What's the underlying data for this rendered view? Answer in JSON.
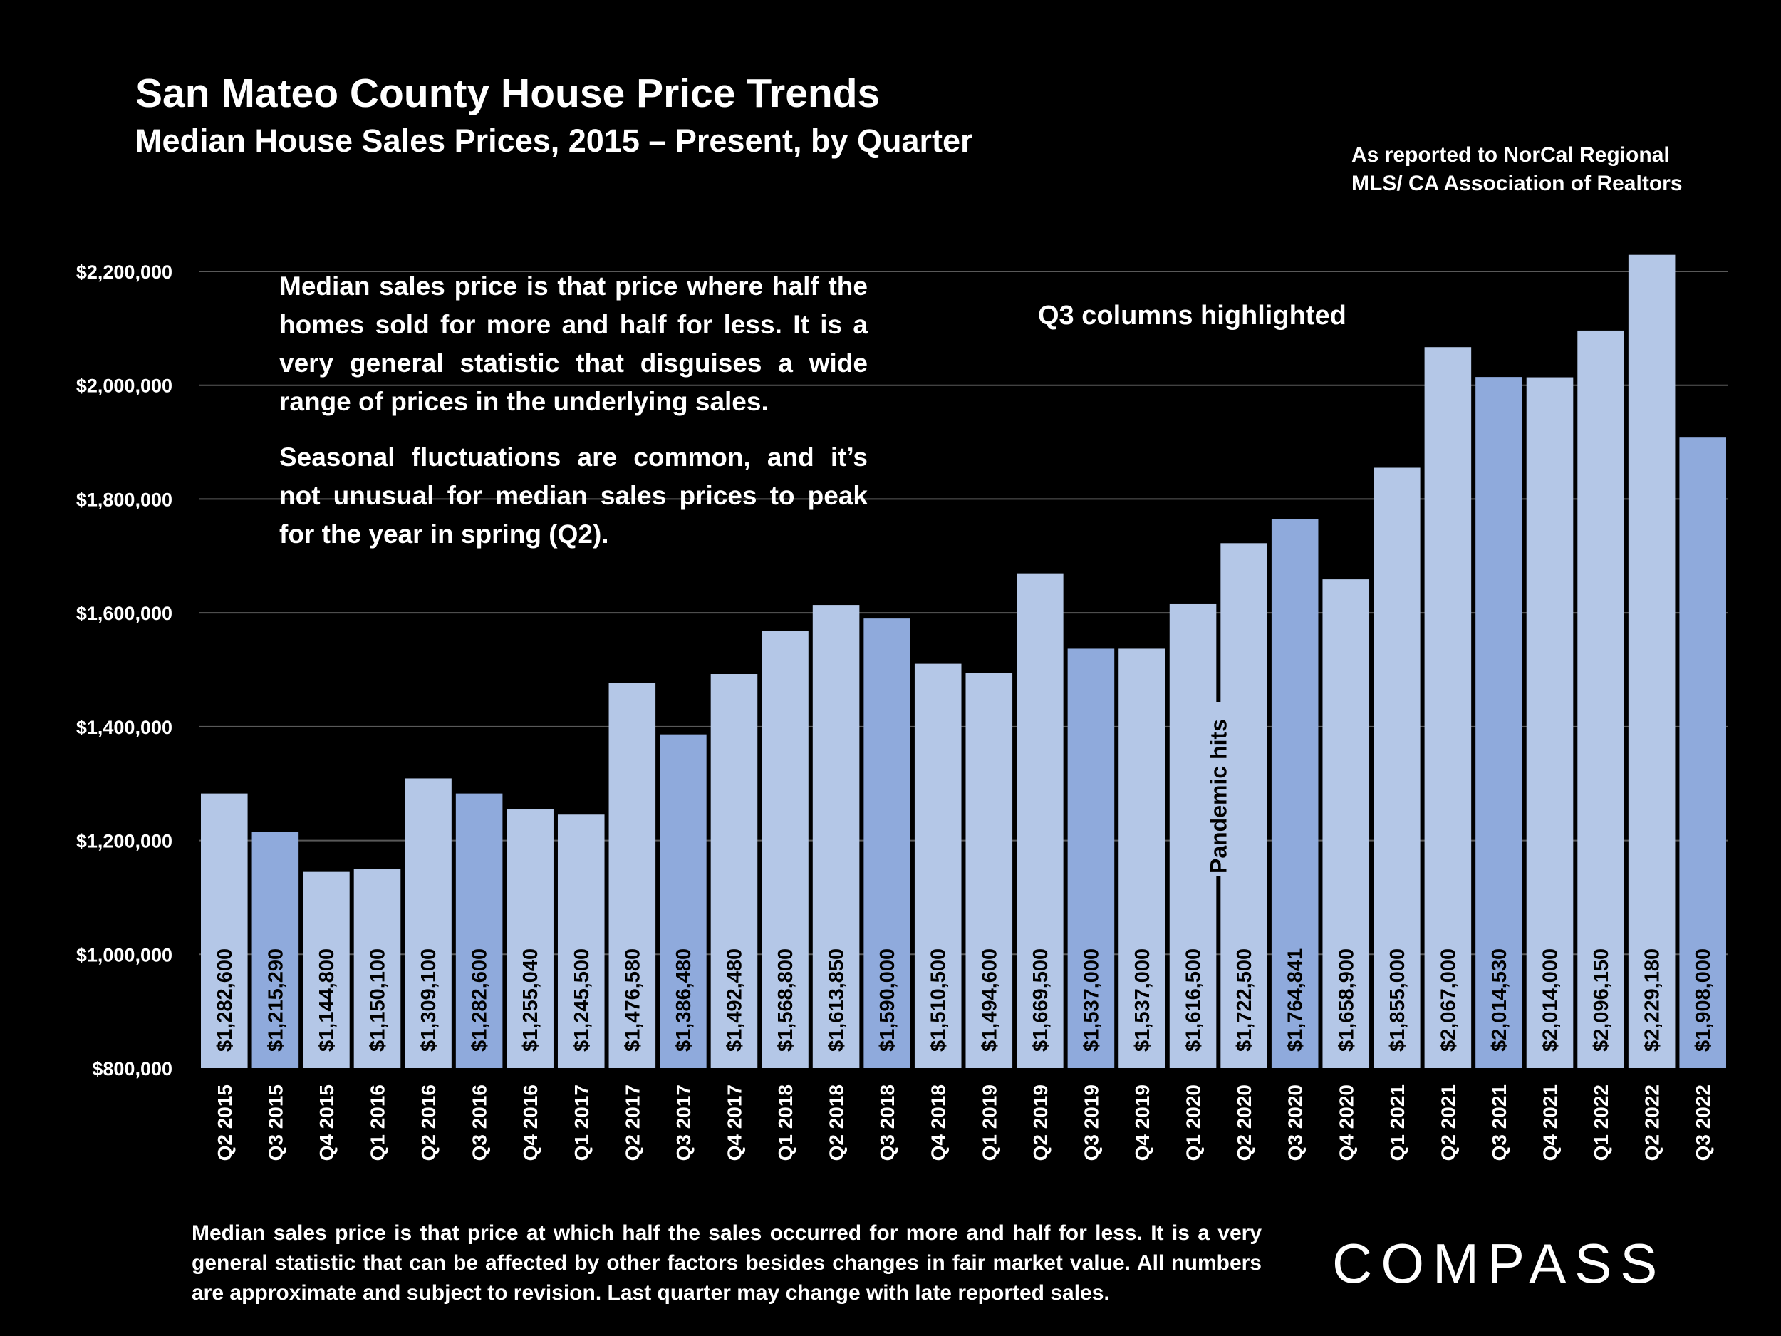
{
  "chart_data": {
    "type": "bar",
    "title": "San Mateo County House Price Trends",
    "subtitle": "Median House Sales Prices, 2015 – Present, by Quarter",
    "source": [
      "As reported to NorCal Regional",
      "MLS/ CA Association of Realtors"
    ],
    "categories": [
      "Q2 2015",
      "Q3 2015",
      "Q4 2015",
      "Q1 2016",
      "Q2 2016",
      "Q3 2016",
      "Q4 2016",
      "Q1 2017",
      "Q2 2017",
      "Q3 2017",
      "Q4 2017",
      "Q1 2018",
      "Q2 2018",
      "Q3 2018",
      "Q4 2018",
      "Q1 2019",
      "Q2 2019",
      "Q3 2019",
      "Q4 2019",
      "Q1 2020",
      "Q2 2020",
      "Q3 2020",
      "Q4 2020",
      "Q1 2021",
      "Q2 2021",
      "Q3 2021",
      "Q4 2021",
      "Q1 2022",
      "Q2 2022",
      "Q3 2022"
    ],
    "values": [
      1282600,
      1215290,
      1144800,
      1150100,
      1309100,
      1282600,
      1255040,
      1245500,
      1476580,
      1386480,
      1492480,
      1568800,
      1613850,
      1590000,
      1510500,
      1494600,
      1669500,
      1537000,
      1537000,
      1616500,
      1722500,
      1764841,
      1658900,
      1855000,
      2067000,
      2014530,
      2014000,
      2096150,
      2229180,
      1908000
    ],
    "data_labels": [
      "$1,282,600",
      "$1,215,290",
      "$1,144,800",
      "$1,150,100",
      "$1,309,100",
      "$1,282,600",
      "$1,255,040",
      "$1,245,500",
      "$1,476,580",
      "$1,386,480",
      "$1,492,480",
      "$1,568,800",
      "$1,613,850",
      "$1,590,000",
      "$1,510,500",
      "$1,494,600",
      "$1,669,500",
      "$1,537,000",
      "$1,537,000",
      "$1,616,500",
      "$1,722,500",
      "$1,764,841",
      "$1,658,900",
      "$1,855,000",
      "$2,067,000",
      "$2,014,530",
      "$2,014,000",
      "$2,096,150",
      "$2,229,180",
      "$1,908,000"
    ],
    "ylim": [
      800000,
      2200000
    ],
    "yticks": [
      800000,
      1000000,
      1200000,
      1400000,
      1600000,
      1800000,
      2000000,
      2200000
    ],
    "ytick_labels": [
      "$800,000",
      "$1,000,000",
      "$1,200,000",
      "$1,400,000",
      "$1,600,000",
      "$1,800,000",
      "$2,000,000",
      "$2,200,000"
    ],
    "grid": true,
    "colors": {
      "default": "#b4c7e7",
      "highlight_q3": "#8faadc"
    },
    "annotations": {
      "pandemic": "Pandemic hits",
      "q3": "Q3 columns highlighted",
      "note_p1": "Median sales price is that price where half the homes sold for more and half for less. It is a very general statistic that disguises a wide range of prices in the underlying sales.",
      "note_p2": "Seasonal fluctuations are common, and it’s not unusual for median sales prices to peak for the year in spring (Q2)."
    }
  },
  "footer": "Median sales price is that price at which half the sales occurred for more and half for less. It is a very general statistic that can be affected by other factors besides changes in fair market value. All numbers are approximate and subject to revision. Last quarter may change with late reported sales.",
  "logo": "COMPASS"
}
